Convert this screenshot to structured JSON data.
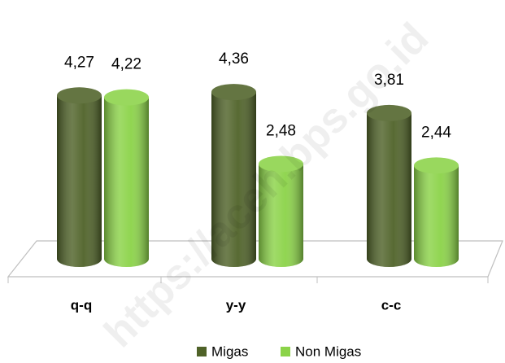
{
  "chart_data": {
    "type": "bar",
    "categories": [
      "q-q",
      "y-y",
      "c-c"
    ],
    "series": [
      {
        "name": "Migas",
        "color": "#4f6228",
        "values": [
          4.27,
          4.36,
          3.81
        ],
        "value_labels": [
          "4,27",
          "4,36",
          "3,81"
        ]
      },
      {
        "name": "Non Migas",
        "color": "#8bd348",
        "values": [
          4.22,
          2.48,
          2.44
        ],
        "value_labels": [
          "4,22",
          "2,48",
          "2,44"
        ]
      }
    ],
    "legend": "bottom",
    "watermark": "https://aceh.bps.go.id"
  }
}
